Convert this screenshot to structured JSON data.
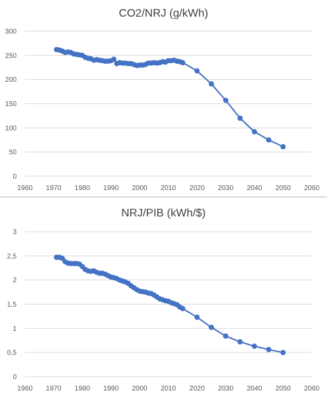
{
  "chart_data": [
    {
      "type": "line",
      "title": "CO2/NRJ (g/kWh)",
      "xlabel": "",
      "ylabel": "",
      "xlim": [
        1960,
        2060
      ],
      "ylim": [
        0,
        300
      ],
      "x_ticks": [
        "1960",
        "1970",
        "1980",
        "1990",
        "2000",
        "2010",
        "2020",
        "2030",
        "2040",
        "2050",
        "2060"
      ],
      "y_ticks": [
        "0",
        "50",
        "100",
        "150",
        "200",
        "250",
        "300"
      ],
      "grid": true,
      "legend": "none",
      "series": [
        {
          "x": [
            1971,
            1972,
            1973,
            1974,
            1975,
            1976,
            1977,
            1978,
            1979,
            1980,
            1981,
            1982,
            1983,
            1984,
            1985,
            1986,
            1987,
            1988,
            1989,
            1990,
            1991,
            1992,
            1993,
            1994,
            1995,
            1996,
            1997,
            1998,
            1999,
            2000,
            2001,
            2002,
            2003,
            2004,
            2005,
            2006,
            2007,
            2008,
            2009,
            2010,
            2011,
            2012,
            2013,
            2014,
            2015,
            2020,
            2025,
            2030,
            2035,
            2040,
            2045,
            2050
          ],
          "y": [
            262,
            261,
            259,
            256,
            257,
            256,
            253,
            252,
            251,
            250,
            246,
            244,
            243,
            240,
            241,
            240,
            239,
            238,
            238,
            239,
            242,
            233,
            235,
            234,
            234,
            233,
            233,
            231,
            229,
            230,
            230,
            231,
            234,
            234,
            235,
            234,
            235,
            237,
            236,
            239,
            239,
            240,
            238,
            237,
            235,
            218,
            191,
            157,
            120,
            92,
            75,
            61
          ]
        }
      ]
    },
    {
      "type": "line",
      "title": "NRJ/PIB (kWh/$)",
      "xlabel": "",
      "ylabel": "",
      "xlim": [
        1960,
        2060
      ],
      "ylim": [
        0,
        3
      ],
      "x_ticks": [
        "1960",
        "1970",
        "1980",
        "1990",
        "2000",
        "2010",
        "2020",
        "2030",
        "2040",
        "2050",
        "2060"
      ],
      "y_ticks": [
        "0",
        "0,5",
        "1",
        "1,5",
        "2",
        "2,5",
        "3"
      ],
      "grid": true,
      "legend": "none",
      "series": [
        {
          "x": [
            1971,
            1972,
            1973,
            1974,
            1975,
            1976,
            1977,
            1978,
            1979,
            1980,
            1981,
            1982,
            1983,
            1984,
            1985,
            1986,
            1987,
            1988,
            1989,
            1990,
            1991,
            1992,
            1993,
            1994,
            1995,
            1996,
            1997,
            1998,
            1999,
            2000,
            2001,
            2002,
            2003,
            2004,
            2005,
            2006,
            2007,
            2008,
            2009,
            2010,
            2011,
            2012,
            2013,
            2014,
            2015,
            2020,
            2025,
            2030,
            2035,
            2040,
            2045,
            2050
          ],
          "y": [
            2.47,
            2.47,
            2.45,
            2.38,
            2.35,
            2.34,
            2.34,
            2.34,
            2.33,
            2.28,
            2.22,
            2.19,
            2.18,
            2.19,
            2.16,
            2.14,
            2.14,
            2.12,
            2.09,
            2.06,
            2.05,
            2.03,
            2.0,
            1.98,
            1.96,
            1.93,
            1.88,
            1.84,
            1.8,
            1.77,
            1.76,
            1.75,
            1.73,
            1.72,
            1.69,
            1.65,
            1.61,
            1.59,
            1.57,
            1.56,
            1.53,
            1.51,
            1.49,
            1.44,
            1.41,
            1.23,
            1.02,
            0.84,
            0.72,
            0.63,
            0.56,
            0.5
          ]
        }
      ]
    }
  ]
}
